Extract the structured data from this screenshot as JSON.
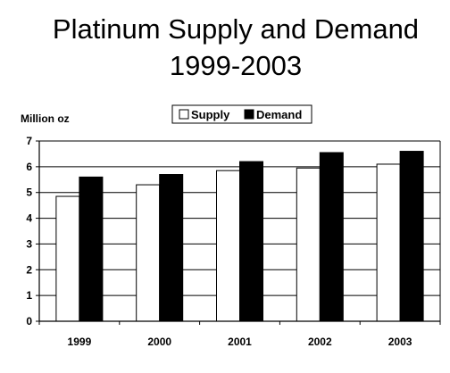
{
  "chart_data": {
    "type": "bar",
    "title_lines": [
      "Platinum Supply and Demand",
      "1999-2003"
    ],
    "ylabel": "Million oz",
    "xlabel": "",
    "categories": [
      "1999",
      "2000",
      "2001",
      "2002",
      "2003"
    ],
    "series": [
      {
        "name": "Supply",
        "values": [
          4.85,
          5.3,
          5.85,
          5.95,
          6.1
        ],
        "color": "#ffffff"
      },
      {
        "name": "Demand",
        "values": [
          5.6,
          5.7,
          6.2,
          6.55,
          6.6
        ],
        "color": "#000000"
      }
    ],
    "ylim": [
      0,
      7
    ],
    "yticks": [
      "0",
      "1",
      "2",
      "3",
      "4",
      "5",
      "6",
      "7"
    ],
    "grid": true,
    "legend_position": "top"
  }
}
